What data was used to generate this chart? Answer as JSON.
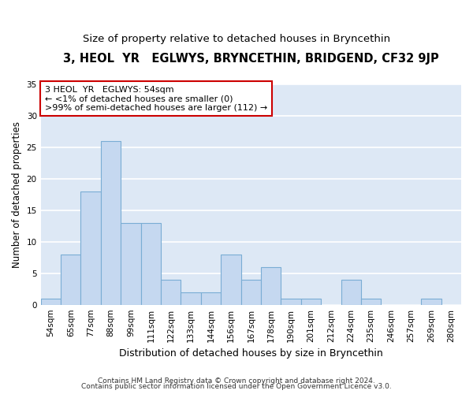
{
  "title": "3, HEOL  YR   EGLWYS, BRYNCETHIN, BRIDGEND, CF32 9JP",
  "subtitle": "Size of property relative to detached houses in Bryncethin",
  "xlabel": "Distribution of detached houses by size in Bryncethin",
  "ylabel": "Number of detached properties",
  "categories": [
    "54sqm",
    "65sqm",
    "77sqm",
    "88sqm",
    "99sqm",
    "111sqm",
    "122sqm",
    "133sqm",
    "144sqm",
    "156sqm",
    "167sqm",
    "178sqm",
    "190sqm",
    "201sqm",
    "212sqm",
    "224sqm",
    "235sqm",
    "246sqm",
    "257sqm",
    "269sqm",
    "280sqm"
  ],
  "values": [
    1,
    8,
    18,
    26,
    13,
    13,
    4,
    2,
    2,
    8,
    4,
    6,
    1,
    1,
    0,
    4,
    1,
    0,
    0,
    1,
    0
  ],
  "bar_color": "#c5d8f0",
  "bar_edge_color": "#7aadd4",
  "annotation_line1": "3 HEOL  YR   EGLWYS: 54sqm",
  "annotation_line2": "← <1% of detached houses are smaller (0)",
  "annotation_line3": ">99% of semi-detached houses are larger (112) →",
  "annotation_box_facecolor": "#ffffff",
  "annotation_box_edgecolor": "#cc0000",
  "ylim": [
    0,
    35
  ],
  "yticks": [
    0,
    5,
    10,
    15,
    20,
    25,
    30,
    35
  ],
  "fig_facecolor": "#ffffff",
  "ax_facecolor": "#dde8f5",
  "grid_color": "#ffffff",
  "footer1": "Contains HM Land Registry data © Crown copyright and database right 2024.",
  "footer2": "Contains public sector information licensed under the Open Government Licence v3.0.",
  "title_fontsize": 10.5,
  "subtitle_fontsize": 9.5,
  "xlabel_fontsize": 9,
  "ylabel_fontsize": 8.5,
  "tick_fontsize": 7.5,
  "annotation_fontsize": 8,
  "footer_fontsize": 6.5
}
